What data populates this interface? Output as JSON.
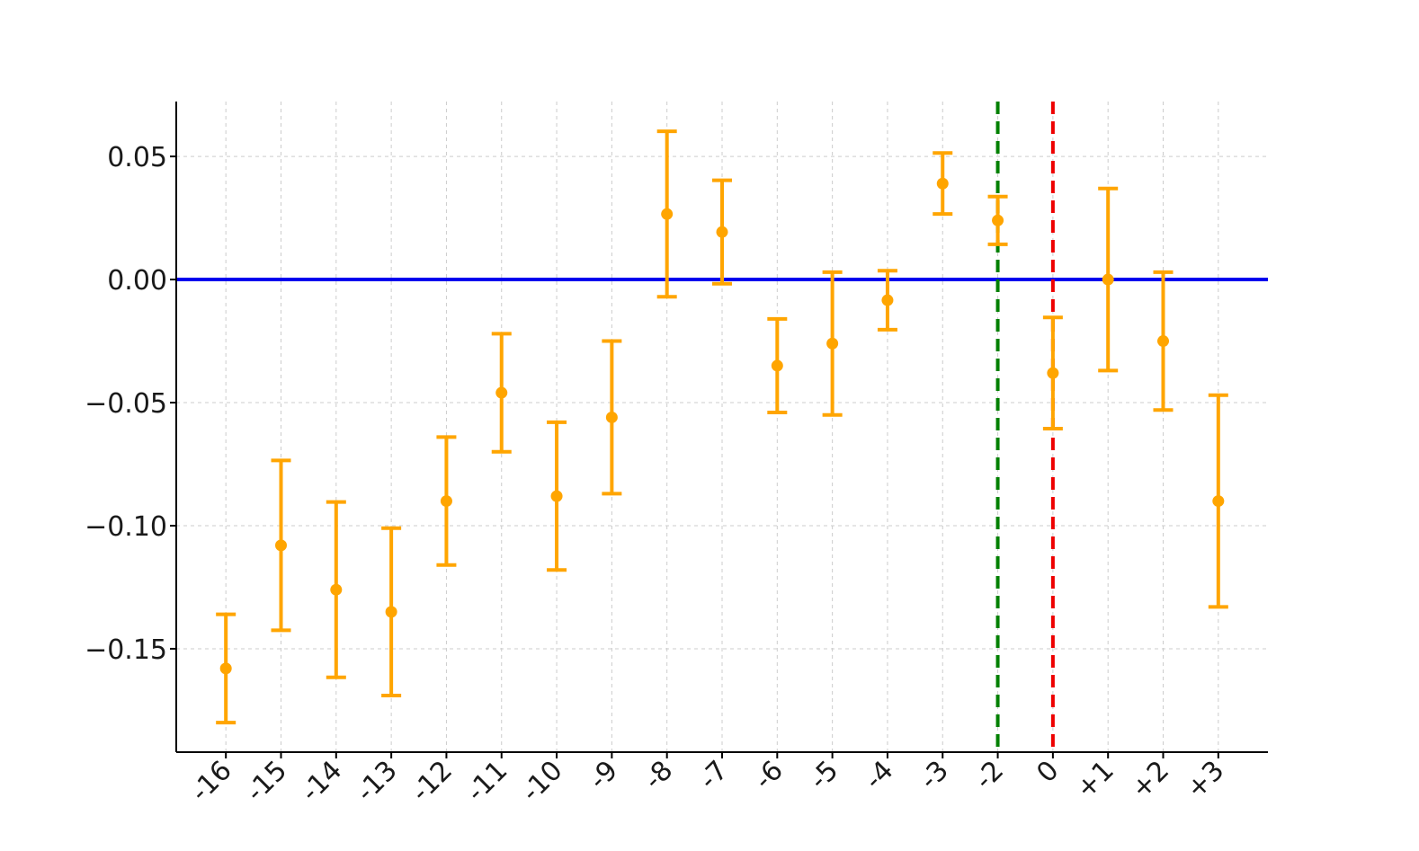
{
  "chart_data": {
    "type": "errorbar",
    "categories": [
      "-16",
      "-15",
      "-14",
      "-13",
      "-12",
      "-11",
      "-10",
      "-9",
      "-8",
      "-7",
      "-6",
      "-5",
      "-4",
      "-3",
      "-2",
      "0",
      "+1",
      "+2",
      "+3"
    ],
    "series": [
      {
        "color": "#FFA500",
        "values": [
          -0.158,
          -0.108,
          -0.126,
          -0.135,
          -0.09,
          -0.046,
          -0.088,
          -0.056,
          0.0266,
          0.0193,
          -0.035,
          -0.026,
          -0.0084,
          0.039,
          0.024,
          -0.038,
          0,
          -0.025,
          -0.09
        ],
        "errors": [
          0.022,
          0.0345,
          0.0356,
          0.034,
          0.026,
          0.024,
          0.03,
          0.031,
          0.0336,
          0.021,
          0.019,
          0.029,
          0.012,
          0.0124,
          0.0097,
          0.0226,
          0.037,
          0.028,
          0.043
        ]
      }
    ],
    "ylim": [
      -0.192,
      0.0723
    ],
    "yticks": [
      {
        "value": -0.15,
        "label": "−0.15"
      },
      {
        "value": -0.1,
        "label": "−0.10"
      },
      {
        "value": -0.05,
        "label": "−0.05"
      },
      {
        "value": 0,
        "label": "0.00"
      },
      0.05
    ],
    "grid": true,
    "hlines": [
      {
        "value": 0,
        "color": "#0000ee"
      }
    ],
    "vlines": [
      {
        "category": "-2",
        "color": "#008000"
      },
      {
        "category": "0",
        "color": "#ee0000"
      }
    ]
  }
}
